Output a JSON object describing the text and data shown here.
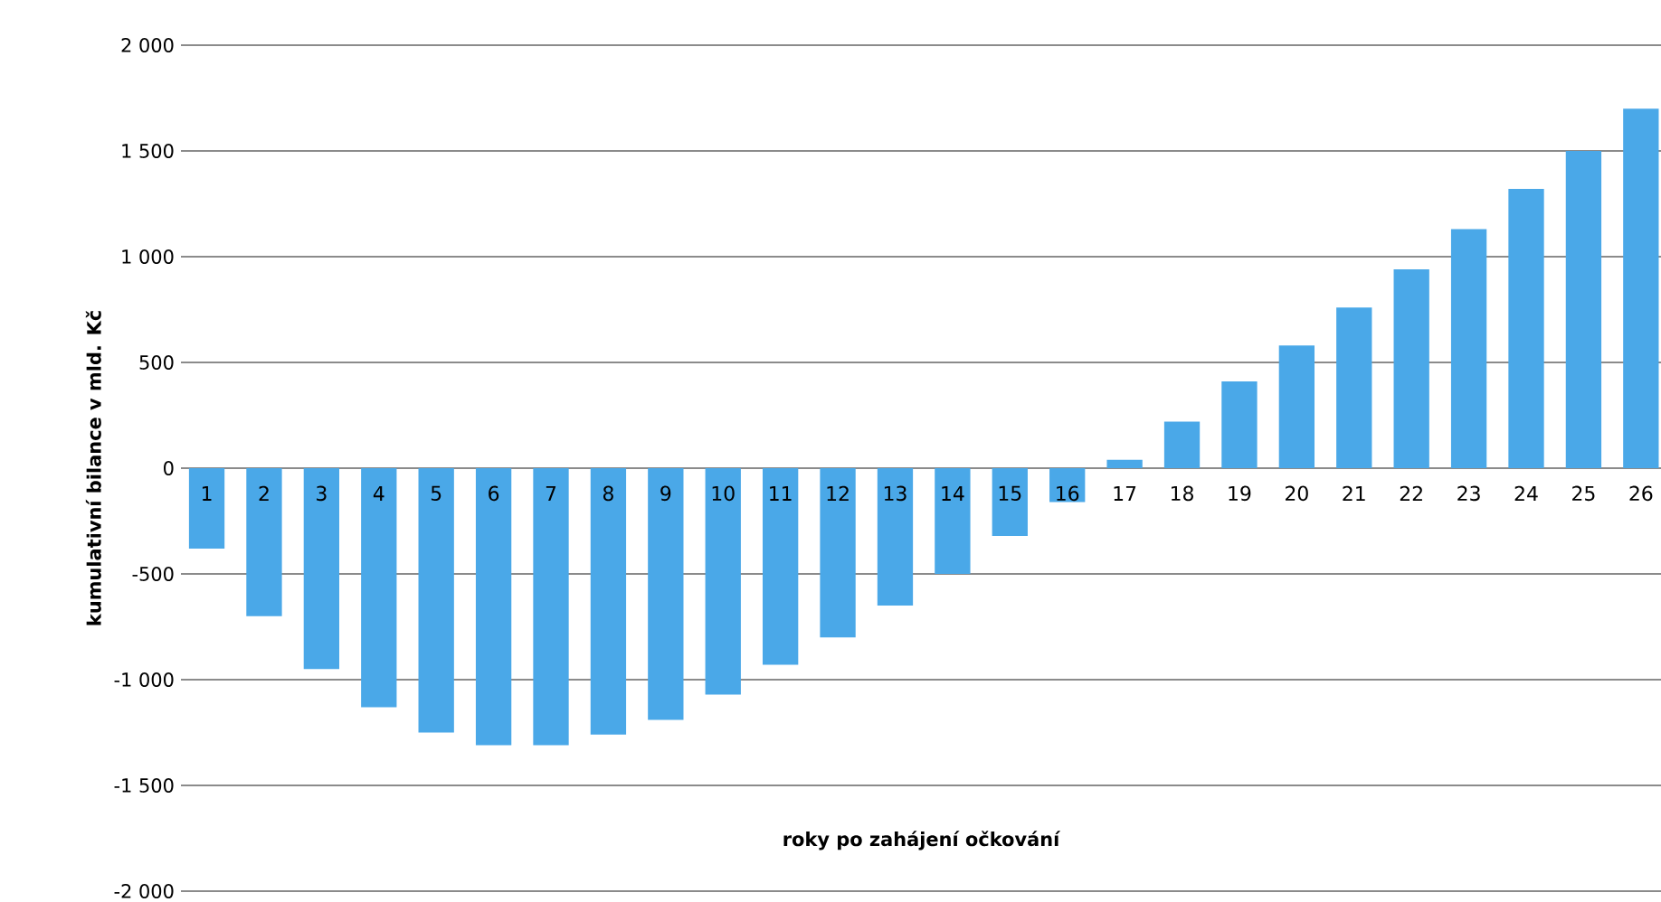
{
  "chart_data": {
    "type": "bar",
    "xlabel": "roky po zahájení očkování",
    "ylabel": "kumulativní bilance v mld. Kč",
    "categories": [
      "1",
      "2",
      "3",
      "4",
      "5",
      "6",
      "7",
      "8",
      "9",
      "10",
      "11",
      "12",
      "13",
      "14",
      "15",
      "16",
      "17",
      "18",
      "19",
      "20",
      "21",
      "22",
      "23",
      "24",
      "25",
      "26"
    ],
    "values": [
      -380,
      -700,
      -950,
      -1130,
      -1250,
      -1310,
      -1310,
      -1260,
      -1190,
      -1070,
      -930,
      -800,
      -650,
      -500,
      -320,
      -160,
      40,
      220,
      410,
      580,
      760,
      940,
      1130,
      1320,
      1500,
      1700
    ],
    "color": "#4aa8e8",
    "ylim": [
      -2000,
      2000
    ],
    "yticks": [
      {
        "value": -2000,
        "label": "-2 000"
      },
      {
        "value": -1500,
        "label": "-1 500"
      },
      {
        "value": -1000,
        "label": "-1 000"
      },
      {
        "value": -500,
        "label": "-500"
      },
      0,
      500,
      {
        "value": 1000,
        "label": "1 000"
      },
      {
        "value": 1500,
        "label": "1 500"
      },
      {
        "value": 2000,
        "label": "2 000"
      }
    ],
    "grid": "y"
  }
}
